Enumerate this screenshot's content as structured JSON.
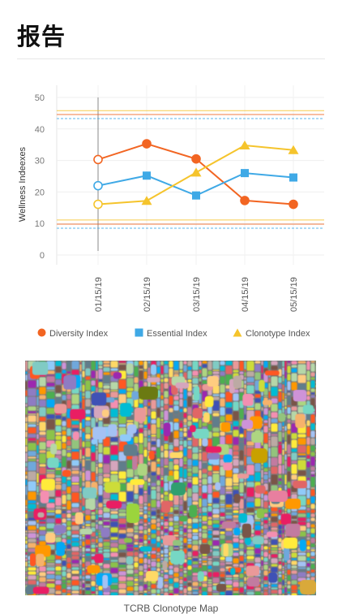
{
  "header": {
    "title": "报告"
  },
  "chart_data": {
    "type": "line",
    "ylabel": "Wellness Indeexes",
    "ylim": [
      0,
      50
    ],
    "yticks": [
      0,
      10,
      20,
      30,
      40,
      50
    ],
    "categories": [
      "01/15/19",
      "02/15/19",
      "03/15/19",
      "04/15/19",
      "05/15/19"
    ],
    "series": [
      {
        "name": "Diversity Index",
        "marker": "circle",
        "color": "#f26522",
        "values": [
          30.3,
          35.3,
          30.5,
          17.3,
          16.1
        ]
      },
      {
        "name": "Essential Index",
        "marker": "square",
        "color": "#3fa9e6",
        "values": [
          22.0,
          25.2,
          18.9,
          26.0,
          24.6
        ]
      },
      {
        "name": "Clonotype Index",
        "marker": "triangle",
        "color": "#f5c42c",
        "values": [
          16.1,
          17.2,
          26.2,
          34.8,
          33.3
        ]
      }
    ],
    "reference_lines": [
      {
        "value": 45.8,
        "color": "#f5c42c",
        "style": "solid"
      },
      {
        "value": 44.6,
        "color": "#f26522",
        "style": "solid"
      },
      {
        "value": 43.3,
        "color": "#3fa9e6",
        "style": "dashed"
      },
      {
        "value": 11.1,
        "color": "#f5c42c",
        "style": "solid"
      },
      {
        "value": 9.8,
        "color": "#f26522",
        "style": "solid"
      },
      {
        "value": 8.5,
        "color": "#3fa9e6",
        "style": "dashed"
      }
    ],
    "highlight_category": "01/15/19",
    "grid": true,
    "legend_position": "bottom"
  },
  "legend": {
    "items": [
      {
        "label": "Diversity Index",
        "color": "#f26522",
        "marker": "circle"
      },
      {
        "label": "Essential Index",
        "color": "#3fa9e6",
        "marker": "square"
      },
      {
        "label": "Clonotype Index",
        "color": "#f5c42c",
        "marker": "triangle"
      }
    ]
  },
  "clonotype_map": {
    "caption": "TCRB Clonotype Map",
    "large_clones": [
      {
        "color": "#6b7a12"
      },
      {
        "color": "#c8a100"
      },
      {
        "color": "#d9a93a"
      },
      {
        "color": "#9bd43c"
      },
      {
        "color": "#e87f9f"
      },
      {
        "color": "#2f9f6f"
      }
    ],
    "palette": [
      "#e06666",
      "#6fa8dc",
      "#93c47d",
      "#ffd966",
      "#c27ba0",
      "#76d7c4",
      "#f6b26b",
      "#8e7cc3",
      "#b6d7a8",
      "#ea9999",
      "#a4c2f4",
      "#d5a6bd",
      "#00bcd4",
      "#ff9800",
      "#4caf50",
      "#9c27b0",
      "#ffeb3b",
      "#607d8b",
      "#e91e63",
      "#3f51b5",
      "#cddc39",
      "#ff5722",
      "#8bc34a",
      "#03a9f4",
      "#795548",
      "#f48fb1",
      "#80cbc4",
      "#bcaaa4",
      "#aed581",
      "#ffcc80",
      "#90caf9",
      "#ce93d8"
    ]
  }
}
